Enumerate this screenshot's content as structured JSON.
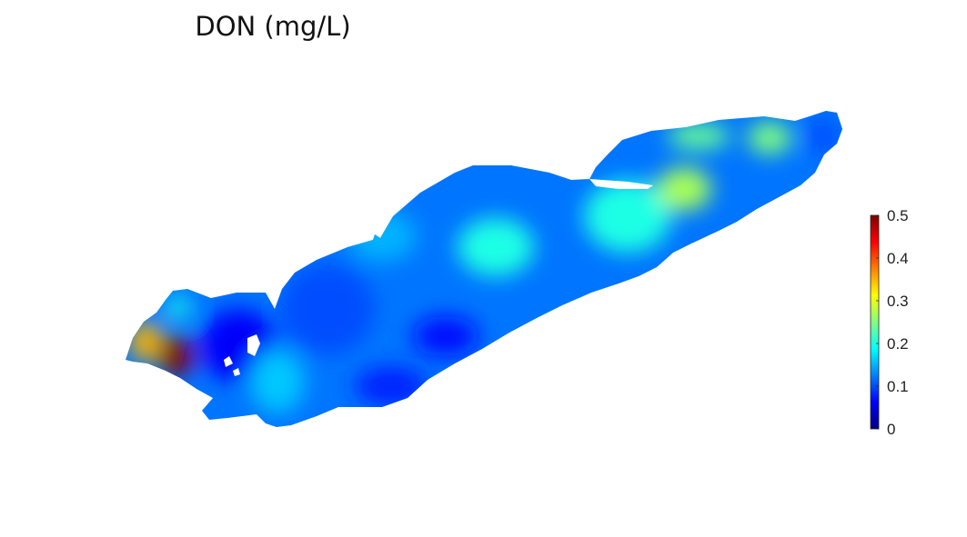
{
  "chart_data": {
    "type": "heatmap",
    "title": "DON (mg/L)",
    "colormap": "jet",
    "colorbar": {
      "min": 0,
      "max": 0.5,
      "ticks": [
        0,
        0.1,
        0.2,
        0.3,
        0.4,
        0.5
      ],
      "tick_labels": [
        "0",
        "0.1",
        "0.2",
        "0.3",
        "0.4",
        "0.5"
      ],
      "placement": "right"
    },
    "background_value": 0.12,
    "hotspots": [
      {
        "region": "far-west-bay",
        "value": 0.5
      },
      {
        "region": "west-shore",
        "value": 0.35
      },
      {
        "region": "west-inlet",
        "value": 0.2
      },
      {
        "region": "west-basin",
        "value": 0.06
      },
      {
        "region": "west-central-shore",
        "value": 0.16
      },
      {
        "region": "central-basin",
        "value": 0.1
      },
      {
        "region": "central-east",
        "value": 0.15
      },
      {
        "region": "central-open-water",
        "value": 0.2
      },
      {
        "region": "south-central",
        "value": 0.07
      },
      {
        "region": "south-shore",
        "value": 0.08
      },
      {
        "region": "east-central",
        "value": 0.2
      },
      {
        "region": "east-basin",
        "value": 0.27
      },
      {
        "region": "east-basin-north",
        "value": 0.24
      },
      {
        "region": "east-end",
        "value": 0.25
      },
      {
        "region": "far-east-shore",
        "value": 0.1
      }
    ]
  }
}
